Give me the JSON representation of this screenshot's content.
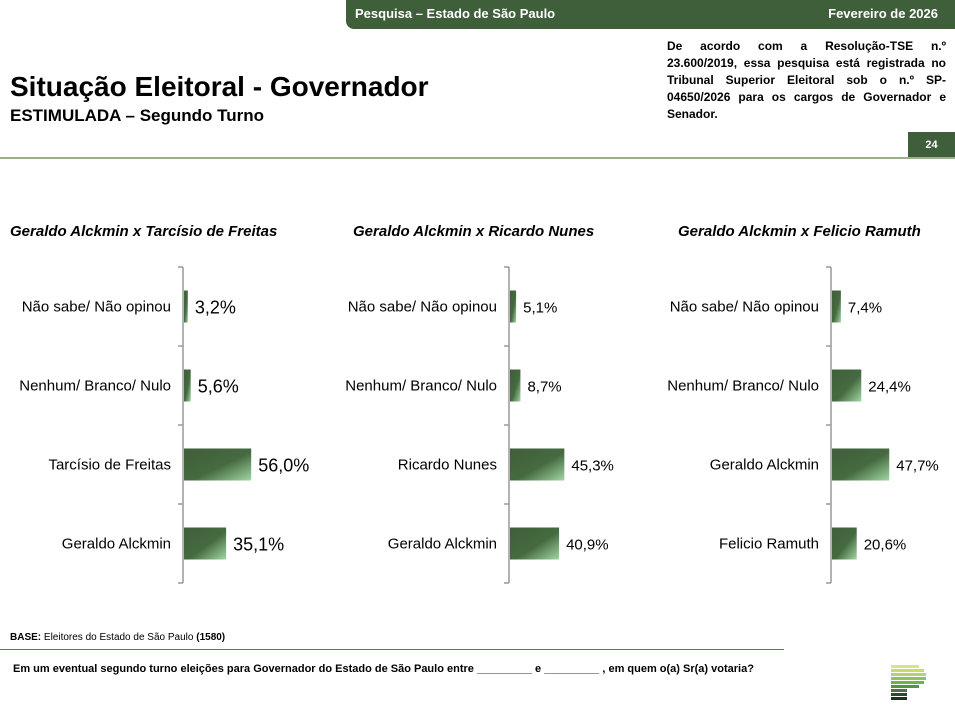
{
  "header": {
    "survey": "Pesquisa – Estado de São Paulo",
    "date": "Fevereiro de 2026",
    "page": "24"
  },
  "title": "Situação Eleitoral - Governador",
  "subtitle": "ESTIMULADA – Segundo Turno",
  "registration_note": "De acordo com a Resolução-TSE n.º 23.600/2019, essa pesquisa está registrada no Tribunal Superior Eleitoral sob o n.º SP-04650/2026 para os cargos de Governador e Senador.",
  "colors": {
    "brand": "#3f5e3a",
    "bar_dark": "#3f5e3a",
    "bar_light": "#9fd0a0"
  },
  "chart_data": [
    {
      "type": "bar",
      "orientation": "horizontal",
      "title": "Geraldo Alckmin x Tarcísio de Freitas",
      "categories": [
        "Não sabe/ Não opinou",
        "Nenhum/ Branco/ Nulo",
        "Tarcísio de Freitas",
        "Geraldo Alckmin"
      ],
      "values": [
        3.2,
        5.6,
        56.0,
        35.1
      ],
      "labels": [
        "3,2%",
        "5,6%",
        "56,0%",
        "35,1%"
      ],
      "unit": "%"
    },
    {
      "type": "bar",
      "orientation": "horizontal",
      "title": "Geraldo Alckmin x Ricardo Nunes",
      "categories": [
        "Não sabe/ Não opinou",
        "Nenhum/ Branco/ Nulo",
        "Ricardo Nunes",
        "Geraldo Alckmin"
      ],
      "values": [
        5.1,
        8.7,
        45.3,
        40.9
      ],
      "labels": [
        "5,1%",
        "8,7%",
        "45,3%",
        "40,9%"
      ],
      "unit": "%"
    },
    {
      "type": "bar",
      "orientation": "horizontal",
      "title": "Geraldo Alckmin x Felicio Ramuth",
      "categories": [
        "Não sabe/ Não opinou",
        "Nenhum/ Branco/ Nulo",
        "Geraldo Alckmin",
        "Felicio Ramuth"
      ],
      "values": [
        7.4,
        24.4,
        47.7,
        20.6
      ],
      "labels": [
        "7,4%",
        "24,4%",
        "47,7%",
        "20,6%"
      ],
      "unit": "%"
    }
  ],
  "footer": {
    "base_label": "BASE:",
    "base_text": " Eleitores do Estado de São Paulo ",
    "base_n": "(1580)",
    "question": "Em um eventual segundo turno eleições para Governador do Estado de São Paulo entre _________ e _________ , em quem o(a) Sr(a) votaria?"
  }
}
